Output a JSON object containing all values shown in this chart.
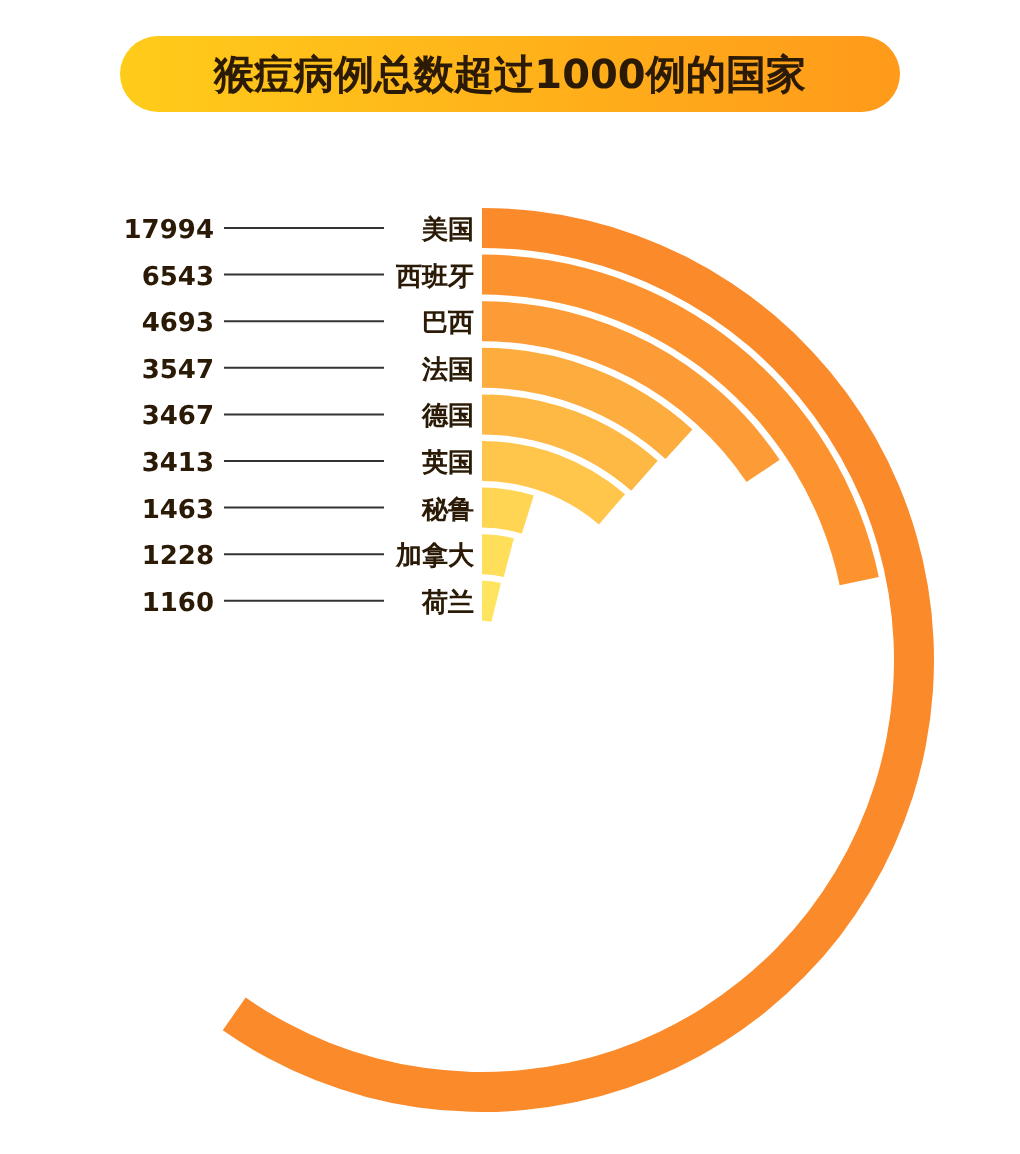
{
  "chart_data": {
    "type": "other",
    "title": "猴痘病例总数超过1000例的国家",
    "categories": [
      "美国",
      "西班牙",
      "巴西",
      "法国",
      "德国",
      "英国",
      "秘鲁",
      "加拿大",
      "荷兰"
    ],
    "values": [
      17994,
      6543,
      4693,
      3547,
      3467,
      3413,
      1463,
      1228,
      1160
    ],
    "colors": [
      "#fb8a2a",
      "#fd932e",
      "#fd9c36",
      "#fdac3e",
      "#feb944",
      "#ffc64b",
      "#ffd553",
      "#ffde5a",
      "#ffe55f"
    ],
    "data_labels": true
  }
}
